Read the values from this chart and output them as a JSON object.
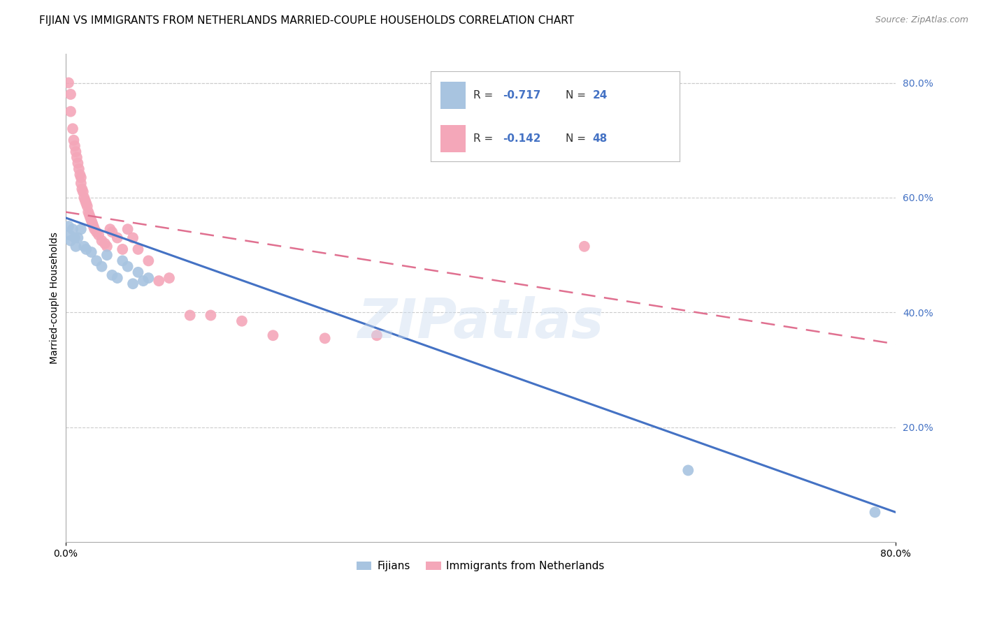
{
  "title": "FIJIAN VS IMMIGRANTS FROM NETHERLANDS MARRIED-COUPLE HOUSEHOLDS CORRELATION CHART",
  "source": "Source: ZipAtlas.com",
  "ylabel": "Married-couple Households",
  "xlim": [
    0,
    0.8
  ],
  "ylim": [
    0,
    0.85
  ],
  "yticks_right": [
    0.2,
    0.4,
    0.6,
    0.8
  ],
  "ytick_right_labels": [
    "20.0%",
    "40.0%",
    "60.0%",
    "80.0%"
  ],
  "legend_R_blue": "-0.717",
  "legend_N_blue": "24",
  "legend_R_pink": "-0.142",
  "legend_N_pink": "48",
  "fijian_color": "#a8c4e0",
  "netherlands_color": "#f4a7b9",
  "fijian_line_color": "#4472c4",
  "netherlands_line_color": "#e07090",
  "watermark": "ZIPatlas",
  "fijian_points_x": [
    0.003,
    0.004,
    0.005,
    0.007,
    0.009,
    0.01,
    0.012,
    0.015,
    0.018,
    0.02,
    0.025,
    0.03,
    0.035,
    0.04,
    0.045,
    0.05,
    0.055,
    0.06,
    0.065,
    0.07,
    0.075,
    0.08,
    0.6,
    0.78
  ],
  "fijian_points_y": [
    0.55,
    0.535,
    0.525,
    0.545,
    0.53,
    0.515,
    0.53,
    0.545,
    0.515,
    0.51,
    0.505,
    0.49,
    0.48,
    0.5,
    0.465,
    0.46,
    0.49,
    0.48,
    0.45,
    0.47,
    0.455,
    0.46,
    0.125,
    0.052
  ],
  "netherlands_points_x": [
    0.003,
    0.005,
    0.005,
    0.007,
    0.008,
    0.009,
    0.01,
    0.011,
    0.012,
    0.013,
    0.014,
    0.015,
    0.015,
    0.016,
    0.017,
    0.018,
    0.019,
    0.02,
    0.021,
    0.022,
    0.023,
    0.024,
    0.025,
    0.026,
    0.027,
    0.028,
    0.03,
    0.032,
    0.035,
    0.038,
    0.04,
    0.043,
    0.045,
    0.05,
    0.055,
    0.06,
    0.065,
    0.07,
    0.08,
    0.09,
    0.1,
    0.12,
    0.14,
    0.17,
    0.2,
    0.25,
    0.3,
    0.5
  ],
  "netherlands_points_y": [
    0.8,
    0.78,
    0.75,
    0.72,
    0.7,
    0.69,
    0.68,
    0.67,
    0.66,
    0.65,
    0.64,
    0.635,
    0.625,
    0.615,
    0.61,
    0.6,
    0.595,
    0.59,
    0.585,
    0.575,
    0.57,
    0.565,
    0.56,
    0.555,
    0.55,
    0.545,
    0.54,
    0.535,
    0.525,
    0.52,
    0.515,
    0.545,
    0.54,
    0.53,
    0.51,
    0.545,
    0.53,
    0.51,
    0.49,
    0.455,
    0.46,
    0.395,
    0.395,
    0.385,
    0.36,
    0.355,
    0.36,
    0.515
  ],
  "background_color": "#ffffff",
  "grid_color": "#cccccc",
  "title_fontsize": 11,
  "axis_label_fontsize": 10,
  "tick_fontsize": 10,
  "right_tick_color": "#4472c4"
}
